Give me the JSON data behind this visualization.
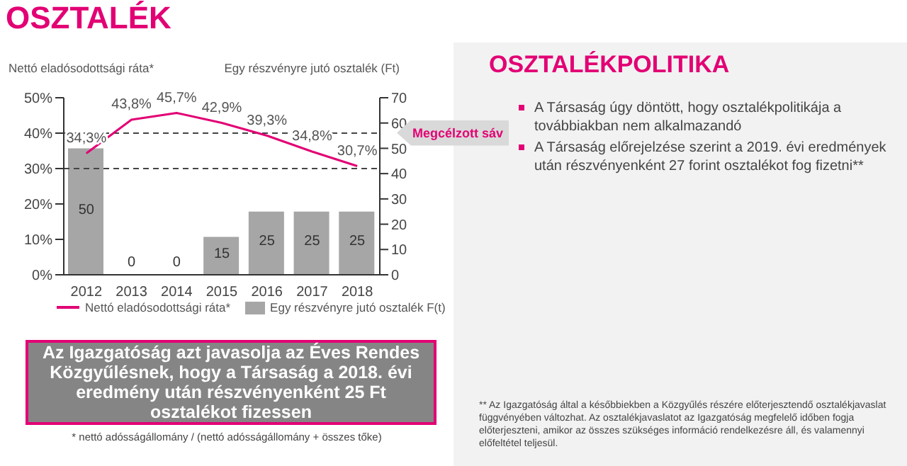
{
  "chart_data": {
    "type": "bar",
    "title": "OSZTALÉK",
    "ylabel": "Nettó eladósodottsági ráta*",
    "y2label": "Egy részvényre jutó osztalék (Ft)",
    "categories": [
      "2012",
      "2013",
      "2014",
      "2015",
      "2016",
      "2017",
      "2018"
    ],
    "series": [
      {
        "name": "Nettó eladósodottsági ráta*",
        "type": "line",
        "color": "#e20074",
        "values": [
          34.3,
          43.8,
          45.7,
          42.9,
          39.3,
          34.8,
          30.7
        ],
        "value_labels": [
          "34,3%",
          "43,8%",
          "45,7%",
          "42,9%",
          "39,3%",
          "34,8%",
          "30,7%"
        ]
      },
      {
        "name": "Egy részvényre jutó osztalék F(t)",
        "type": "bar",
        "axis": "y2",
        "color": "#a6a6a6",
        "values": [
          50,
          0,
          0,
          15,
          25,
          25,
          25
        ],
        "value_labels": [
          "50",
          "0",
          "0",
          "15",
          "25",
          "25",
          "25"
        ]
      }
    ],
    "ylim": [
      0,
      50
    ],
    "yticks": [
      {
        "value": 0,
        "label": "0%"
      },
      {
        "value": 10,
        "label": "10%"
      },
      {
        "value": 20,
        "label": "20%"
      },
      {
        "value": 30,
        "label": "30%"
      },
      {
        "value": 40,
        "label": "40%"
      },
      {
        "value": 50,
        "label": "50%"
      }
    ],
    "y2lim": [
      0,
      70
    ],
    "y2ticks": [
      0,
      10,
      20,
      30,
      40,
      50,
      60,
      70
    ],
    "ref_lines": [
      {
        "axis": "y",
        "value": 40,
        "label": "Megcélzott sáv",
        "line_style": "dashed"
      },
      {
        "axis": "y",
        "value": 30,
        "line_style": "dashed"
      }
    ],
    "legend": "bottom",
    "grid": false,
    "marker": "none",
    "line_style": "solid",
    "annotations": [
      "OSZTALÉKPOLITIKA",
      "A Társaság  úgy döntött, hogy osztalékpolitikája a továbbiakban nem alkalmazandó",
      "A Társaság előrejelzése szerint a 2019. évi eredmények után részvényenként 27 forint osztalékot fog fizetni**",
      "Az Igazgatóság azt javasolja az Éves Rendes Közgyűlésnek, hogy a Társaság a 2018. évi eredmény után részvényenként 25 Ft osztalékot fizessen",
      "* nettó adósságállomány / (nettó adósságállomány + összes tőke)",
      "** Az Igazgatóság által a későbbiekben a Közgyűlés részére előterjesztendő osztalékjavaslat függvényében változhat. Az osztalékjavaslatot az Igazgatóság megfelelő időben fogja előterjeszteni, amikor az összes szükséges információ rendelkezésre áll, és valamennyi előfeltétel teljesül."
    ]
  }
}
